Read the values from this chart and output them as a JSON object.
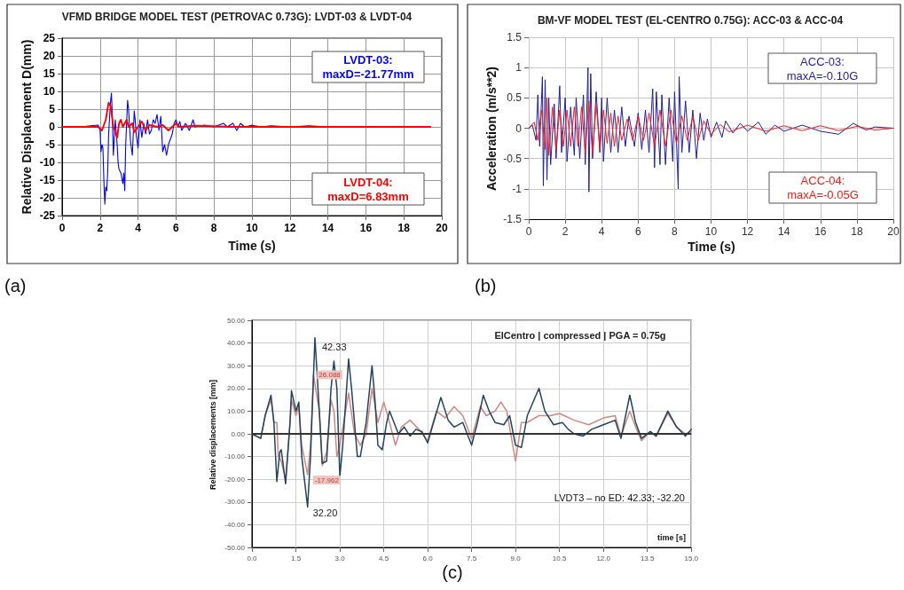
{
  "chart_data": [
    {
      "type": "line",
      "title": "VFMD BRIDGE MODEL TEST (PETROVAC 0.73G): LVDT-03 & LVDT-04",
      "xlabel": "Time (s)",
      "ylabel": "Relative Displacement D(mm)",
      "xlim": [
        0,
        20
      ],
      "xticks": [
        0,
        2,
        4,
        6,
        8,
        10,
        12,
        14,
        16,
        18,
        20
      ],
      "ylim": [
        -25,
        25
      ],
      "yticks": [
        -25,
        -20,
        -15,
        -10,
        -5,
        0,
        5,
        10,
        15,
        20,
        25
      ],
      "grid": true,
      "marker": "none",
      "annotations": [
        "LVDT-03:\nmaxD=-21.77mm",
        "LVDT-04:\nmaxD=6.83mm",
        "(a)"
      ],
      "series": [
        {
          "color": "#0000ff",
          "x": [
            0,
            1,
            1.5,
            1.9,
            2,
            2.05,
            2.1,
            2.15,
            2.2,
            2.25,
            2.3,
            2.35,
            2.4,
            2.45,
            2.55,
            2.6,
            2.65,
            2.7,
            2.75,
            2.8,
            2.9,
            2.95,
            3,
            3.1,
            3.2,
            3.25,
            3.3,
            3.35,
            3.45,
            3.5,
            3.6,
            3.7,
            3.8,
            3.85,
            3.9,
            4,
            4.1,
            4.2,
            4.3,
            4.4,
            4.5,
            4.6,
            4.7,
            4.8,
            4.9,
            5,
            5.1,
            5.2,
            5.3,
            5.4,
            5.5,
            5.6,
            5.8,
            5.9,
            6,
            6.1,
            6.2,
            6.3,
            6.5,
            6.7,
            6.9,
            7,
            7.5,
            8,
            8.5,
            8.7,
            9,
            9.2,
            9.4,
            9.6,
            10,
            10.5,
            11,
            12,
            13,
            14,
            19.4
          ],
          "values": [
            0,
            0,
            0.3,
            0.5,
            -1,
            -7,
            -5,
            -6,
            -15,
            -21.77,
            -17,
            -18,
            -13,
            -2,
            7,
            9.5,
            2,
            -8,
            -3,
            2,
            -5,
            -10,
            -12,
            -13,
            -16,
            -13,
            -18,
            -5,
            7.5,
            5,
            -4,
            -8,
            4.5,
            2,
            -2,
            -6,
            2,
            -3,
            1,
            -2,
            2,
            -2,
            -1,
            2,
            1,
            3.5,
            -1,
            3,
            -7,
            -5,
            -8,
            -5,
            -2,
            1,
            2,
            0,
            1.5,
            -1,
            1,
            -1,
            2,
            0,
            0.5,
            0,
            1,
            0,
            1,
            -1,
            1,
            0,
            0.4,
            0,
            0.3,
            0,
            0.3,
            0,
            0
          ]
        },
        {
          "color": "#ff0000",
          "x": [
            0,
            1.9,
            2.1,
            2.3,
            2.45,
            2.55,
            2.7,
            2.9,
            3,
            3.1,
            3.2,
            3.4,
            3.5,
            3.7,
            3.8,
            4,
            4.2,
            4.4,
            4.6,
            5,
            5.3,
            5.6,
            5.8,
            6,
            6.2,
            7,
            9,
            19.4
          ],
          "values": [
            0,
            0,
            -1,
            2,
            6.83,
            6,
            0,
            -3,
            1,
            2,
            0,
            2,
            0,
            1,
            -1.5,
            0,
            1.5,
            -1,
            0.5,
            0,
            0.5,
            -1,
            0,
            1,
            0,
            0.3,
            0,
            0
          ]
        }
      ]
    },
    {
      "type": "line",
      "title": "BM-VF MODEL TEST (EL-CENTRO 0.75G): ACC-03 & ACC-04",
      "xlabel": "Time (s)",
      "ylabel": "Acceleration (m/s**2)",
      "xlim": [
        0,
        20
      ],
      "xticks": [
        0,
        2,
        4,
        6,
        8,
        10,
        12,
        14,
        16,
        18,
        20
      ],
      "ylim": [
        -1.5,
        1.5
      ],
      "yticks": [
        -1.5,
        -1,
        -0.5,
        0,
        0.5,
        1,
        1.5
      ],
      "grid": true,
      "marker": "none",
      "annotations": [
        "ACC-03:\nmaxA=-0.10G",
        "ACC-04:\nmaxA=-0.05G",
        "(b)"
      ],
      "series": [
        {
          "color": "#1f1f9a",
          "x": [
            0,
            0.2,
            0.4,
            0.5,
            0.6,
            0.75,
            0.8,
            0.9,
            1,
            1.1,
            1.2,
            1.4,
            1.5,
            1.7,
            1.8,
            2,
            2.1,
            2.3,
            2.5,
            2.6,
            2.8,
            3,
            3.1,
            3.25,
            3.3,
            3.4,
            3.5,
            3.7,
            3.9,
            4,
            4.1,
            4.3,
            4.5,
            4.7,
            4.9,
            5.1,
            5.3,
            5.5,
            5.8,
            6,
            6.2,
            6.4,
            6.6,
            6.8,
            6.9,
            7,
            7.2,
            7.3,
            7.5,
            7.7,
            7.9,
            8,
            8.2,
            8.25,
            8.4,
            8.6,
            8.8,
            9,
            9.2,
            9.4,
            9.6,
            9.8,
            10,
            10.3,
            10.6,
            10.8,
            11.2,
            11.6,
            12,
            12.6,
            13,
            13.5,
            14,
            15,
            16,
            17,
            17.8,
            18.5,
            19,
            20
          ],
          "values": [
            0,
            0.05,
            -0.2,
            0.55,
            -0.3,
            0.85,
            -0.95,
            0.8,
            -0.85,
            0.5,
            -0.6,
            0.4,
            -0.5,
            0.7,
            -0.4,
            0.5,
            -0.55,
            0.35,
            -0.45,
            0.5,
            -0.5,
            0.55,
            -0.6,
            1,
            -1.05,
            0.9,
            -0.5,
            0.6,
            -0.4,
            0.5,
            -0.55,
            0.5,
            -0.4,
            0.3,
            -0.4,
            0.35,
            -0.3,
            0.2,
            -0.3,
            0.25,
            -0.35,
            0.3,
            -0.4,
            0.65,
            -0.65,
            0.6,
            -0.6,
            0.55,
            -0.6,
            0.5,
            -0.55,
            0.6,
            -1,
            0.85,
            -0.4,
            0.45,
            -0.4,
            0.3,
            -0.5,
            0.25,
            -0.2,
            0.15,
            -0.15,
            0.1,
            -0.15,
            0.12,
            -0.08,
            0.08,
            -0.05,
            0.1,
            -0.1,
            0.05,
            -0.05,
            0.05,
            -0.05,
            -0.1,
            0.08,
            -0.03,
            0.02,
            0
          ]
        },
        {
          "color": "#ff1a1a",
          "x": [
            0,
            0.3,
            0.5,
            0.7,
            0.9,
            1,
            1.1,
            1.3,
            1.5,
            1.7,
            1.9,
            2.1,
            2.3,
            2.5,
            2.7,
            2.9,
            3.1,
            3.3,
            3.5,
            3.7,
            3.9,
            4.1,
            4.3,
            4.5,
            4.7,
            4.9,
            5.1,
            5.4,
            5.7,
            6,
            6.3,
            6.6,
            6.9,
            7.2,
            7.5,
            7.8,
            8.1,
            8.4,
            8.7,
            9,
            9.3,
            9.6,
            10,
            10.5,
            11,
            12,
            13,
            14,
            15,
            16,
            17,
            18,
            19,
            20
          ],
          "values": [
            0,
            0.1,
            -0.2,
            0.3,
            -0.35,
            0.5,
            -0.45,
            0.35,
            -0.35,
            0.3,
            -0.3,
            0.3,
            -0.3,
            0.35,
            -0.3,
            0.35,
            -0.4,
            0.45,
            -0.45,
            0.4,
            -0.35,
            0.3,
            -0.25,
            0.25,
            -0.3,
            0.2,
            -0.2,
            0.15,
            -0.2,
            0.2,
            -0.2,
            0.25,
            -0.3,
            0.3,
            -0.3,
            0.3,
            -0.25,
            0.2,
            -0.2,
            0.2,
            -0.2,
            0.12,
            -0.1,
            0.06,
            -0.06,
            0.05,
            -0.05,
            0.04,
            -0.04,
            0.04,
            -0.04,
            0.03,
            -0.03,
            0
          ]
        }
      ]
    },
    {
      "type": "line",
      "title": "ElCentro | compressed | PGA = 0.75g",
      "xlabel": "time [s]",
      "ylabel": "Relative displacements [mm]",
      "xlim": [
        0,
        15
      ],
      "xticks": [
        {
          "value": 0,
          "label": "0.0"
        },
        {
          "value": 1.5,
          "label": "1.5"
        },
        {
          "value": 3,
          "label": "3.0"
        },
        {
          "value": 4.5,
          "label": "4.5"
        },
        {
          "value": 6,
          "label": "6.0"
        },
        {
          "value": 7.5,
          "label": "7.5"
        },
        {
          "value": 9,
          "label": "9.0"
        },
        {
          "value": 10.5,
          "label": "10.5"
        },
        {
          "value": 12,
          "label": "12.0"
        },
        {
          "value": 13.5,
          "label": "13.5"
        },
        {
          "value": 15,
          "label": "15.0"
        }
      ],
      "ylim": [
        -50,
        50
      ],
      "yticks": [
        {
          "value": -50,
          "label": "-50.00"
        },
        {
          "value": -40,
          "label": "-40.00"
        },
        {
          "value": -30,
          "label": "-30.00"
        },
        {
          "value": -20,
          "label": "-20.00"
        },
        {
          "value": -10,
          "label": "-10.00"
        },
        {
          "value": 0,
          "label": "0.00"
        },
        {
          "value": 10,
          "label": "10.00"
        },
        {
          "value": 20,
          "label": "20.00"
        },
        {
          "value": 30,
          "label": "30.00"
        },
        {
          "value": 40,
          "label": "40.00"
        },
        {
          "value": 50,
          "label": "50.00"
        }
      ],
      "grid": true,
      "marker": "none",
      "ref_lines": [
        {
          "axis": "y",
          "value": 0,
          "color": "#333333"
        }
      ],
      "annotations": [
        {
          "text": "42.33",
          "x": 2.15,
          "y": 42.33
        },
        {
          "text": "32.20",
          "x": 1.9,
          "y": -32.2
        },
        {
          "text": "26.088",
          "x": 2.1,
          "y": 26
        },
        {
          "text": "-17.962",
          "x": 1.9,
          "y": -18
        },
        "LVDT3 – no ED: 42.33; -32.20",
        "(c)"
      ],
      "series": [
        {
          "color": "#cc8a82",
          "x": [
            0,
            0.3,
            0.45,
            0.65,
            0.75,
            0.85,
            0.9,
            1,
            1.15,
            1.3,
            1.35,
            1.5,
            1.6,
            1.7,
            1.9,
            2,
            2.1,
            2.3,
            2.4,
            2.55,
            2.7,
            2.8,
            2.9,
            3,
            3.3,
            3.5,
            3.7,
            3.9,
            4.1,
            4.3,
            4.5,
            4.7,
            4.9,
            5.1,
            5.4,
            5.7,
            6,
            6.3,
            6.6,
            6.9,
            7.2,
            7.5,
            7.8,
            8,
            8.3,
            8.5,
            8.7,
            9,
            9.2,
            9.4,
            9.8,
            10.2,
            10.5,
            11,
            11.5,
            12,
            12.4,
            12.6,
            12.9,
            13.1,
            13.3,
            13.6,
            13.8,
            14.2,
            14.5,
            14.8,
            15
          ],
          "values": [
            0,
            -2,
            8,
            15,
            5,
            5,
            -10,
            -12,
            -20,
            5,
            15,
            8,
            12,
            -5,
            -18,
            -5,
            26,
            10,
            -14,
            -8,
            15,
            10,
            -10,
            -5,
            18,
            0,
            -5,
            0,
            20,
            5,
            14,
            5,
            -5,
            3,
            6,
            2,
            -3,
            10,
            7,
            12,
            8,
            -2,
            12,
            8,
            10,
            14,
            10,
            -12,
            5,
            5,
            8,
            8,
            9,
            6,
            4,
            7,
            8,
            -1,
            10,
            3,
            -3,
            1,
            -1,
            9,
            3,
            0,
            1
          ]
        },
        {
          "color": "#24435e",
          "x": [
            0,
            0.3,
            0.45,
            0.65,
            0.75,
            0.85,
            0.95,
            1,
            1.15,
            1.3,
            1.35,
            1.5,
            1.6,
            1.7,
            1.9,
            2,
            2.15,
            2.3,
            2.4,
            2.55,
            2.7,
            2.8,
            2.9,
            3,
            3.1,
            3.3,
            3.4,
            3.6,
            3.7,
            3.9,
            4.1,
            4.2,
            4.3,
            4.45,
            4.6,
            4.7,
            4.85,
            5,
            5.2,
            5.4,
            5.6,
            5.8,
            6,
            6.2,
            6.45,
            6.7,
            6.9,
            7.2,
            7.5,
            7.7,
            7.9,
            8.1,
            8.3,
            8.6,
            8.8,
            9,
            9.2,
            9.4,
            9.8,
            10,
            10.3,
            10.6,
            10.8,
            11,
            11.3,
            11.6,
            12,
            12.4,
            12.6,
            12.9,
            13.1,
            13.3,
            13.6,
            13.8,
            14.2,
            14.5,
            14.8,
            15
          ],
          "values": [
            0,
            -2,
            8,
            17,
            5,
            -21,
            -8,
            -7,
            -22,
            5,
            19,
            10,
            14,
            -10,
            -32.2,
            -10,
            42.33,
            10,
            -13,
            -12,
            20,
            32,
            20,
            -19,
            -5,
            33,
            20,
            -10,
            -10,
            5,
            30,
            15,
            -5,
            -7,
            5,
            10,
            5,
            0,
            3,
            -1,
            2,
            1,
            -4,
            5,
            16,
            6,
            3,
            5,
            -5,
            5,
            17,
            10,
            5,
            4,
            8,
            -5,
            -6,
            8,
            20,
            10,
            4,
            5,
            2,
            0,
            -1,
            2,
            4,
            6,
            -2,
            17,
            5,
            -2,
            1,
            -1,
            10,
            3,
            -1,
            2
          ]
        }
      ]
    }
  ]
}
